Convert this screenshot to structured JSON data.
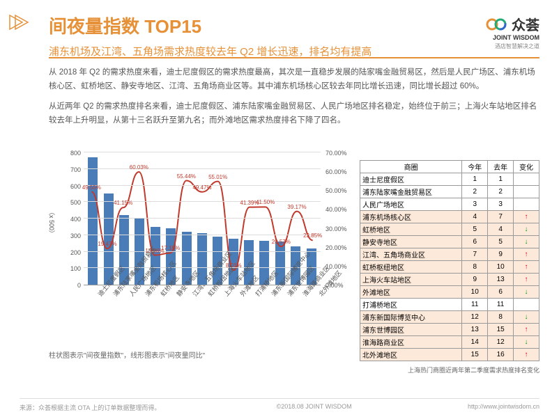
{
  "header": {
    "title": "间夜量指数 TOP15",
    "subtitle": "浦东机场及江湾、五角场需求热度较去年 Q2 增长迅速，排名均有提高"
  },
  "logo": {
    "name": "众荟",
    "en": "JOINT WISDOM",
    "tag": "酒店智慧解决之道"
  },
  "paragraphs": [
    "从 2018 年 Q2 的需求热度来看，迪士尼度假区的需求热度最高，其次是一直稳步发展的陆家嘴金融贸易区，然后是人民广场区、浦东机场核心区、虹桥地区、静安寺地区、江湾、五角场商业区等。其中浦东机场核心区较去年同比增长迅速，同比增长超过 60%。",
    "从近两年 Q2 的需求热度排名来看，迪士尼度假区、浦东陆家嘴金融贸易区、人民广场地区排名稳定，始终位于前三；上海火车站地区排名较去年上升明显，从第十三名跃升至第九名；而外滩地区需求热度排名下降了四名。"
  ],
  "chart": {
    "y_left_label": "（x 500）",
    "y_left_max": 800,
    "y_left_ticks": [
      0,
      100,
      200,
      300,
      400,
      500,
      600,
      700,
      800
    ],
    "y_right_ticks": [
      "0.00%",
      "10.00%",
      "20.00%",
      "30.00%",
      "40.00%",
      "50.00%",
      "60.00%",
      "70.00%"
    ],
    "y_right_max": 70,
    "bar_color": "#4a7db8",
    "line_color": "#c0392b",
    "grid_color": "#dddddd",
    "note": "柱状图表示\"间夜量指数\"，线形图表示\"间夜量同比\"",
    "categories": [
      "迪士尼度假区",
      "浦东陆家嘴金融贸易区",
      "人民广场地区",
      "浦东机场核心区",
      "虹桥地区",
      "静安寺地区",
      "江湾、五角场商业区",
      "虹桥枢纽地区",
      "上海火车站地区",
      "外滩地区",
      "打浦桥地区",
      "浦东新国际博览中心",
      "浦东世博园区",
      "淮海路商业区",
      "北外滩地区"
    ],
    "bars": [
      770,
      550,
      420,
      400,
      350,
      340,
      320,
      310,
      290,
      280,
      270,
      265,
      260,
      230,
      220
    ],
    "pcts": [
      49.55,
      19.47,
      41.15,
      60.03,
      15.96,
      17.15,
      55.44,
      49.47,
      55.01,
      8.01,
      41.39,
      41.5,
      20.57,
      39.17,
      23.85
    ]
  },
  "table": {
    "headers": [
      "商圈",
      "今年",
      "去年",
      "变化"
    ],
    "caption": "上海热门商圈近两年第二季度需求热度排名变化",
    "rows": [
      {
        "n": "迪士尼度假区",
        "a": 1,
        "b": 1,
        "c": "",
        "hl": false
      },
      {
        "n": "浦东陆家嘴金融贸易区",
        "a": 2,
        "b": 2,
        "c": "",
        "hl": false
      },
      {
        "n": "人民广场地区",
        "a": 3,
        "b": 3,
        "c": "",
        "hl": false
      },
      {
        "n": "浦东机场核心区",
        "a": 4,
        "b": 7,
        "c": "up",
        "hl": true
      },
      {
        "n": "虹桥地区",
        "a": 5,
        "b": 4,
        "c": "down",
        "hl": true
      },
      {
        "n": "静安寺地区",
        "a": 6,
        "b": 5,
        "c": "down",
        "hl": true
      },
      {
        "n": "江湾、五角场商业区",
        "a": 7,
        "b": 9,
        "c": "up",
        "hl": true
      },
      {
        "n": "虹桥枢纽地区",
        "a": 8,
        "b": 10,
        "c": "up",
        "hl": true
      },
      {
        "n": "上海火车站地区",
        "a": 9,
        "b": 13,
        "c": "up",
        "hl": true
      },
      {
        "n": "外滩地区",
        "a": 10,
        "b": 6,
        "c": "down",
        "hl": true
      },
      {
        "n": "打浦桥地区",
        "a": 11,
        "b": 11,
        "c": "",
        "hl": false
      },
      {
        "n": "浦东新国际博览中心",
        "a": 12,
        "b": 8,
        "c": "down",
        "hl": true
      },
      {
        "n": "浦东世博园区",
        "a": 13,
        "b": 15,
        "c": "up",
        "hl": true
      },
      {
        "n": "淮海路商业区",
        "a": 14,
        "b": 12,
        "c": "down",
        "hl": true
      },
      {
        "n": "北外滩地区",
        "a": 15,
        "b": 16,
        "c": "up",
        "hl": true
      }
    ]
  },
  "footer": {
    "source": "来源：众荟根据主流 OTA 上的订单数据整理而得。",
    "copyright": "©2018.08 JOINT WISDOM",
    "url": "http://www.jointwisdom.cn"
  }
}
